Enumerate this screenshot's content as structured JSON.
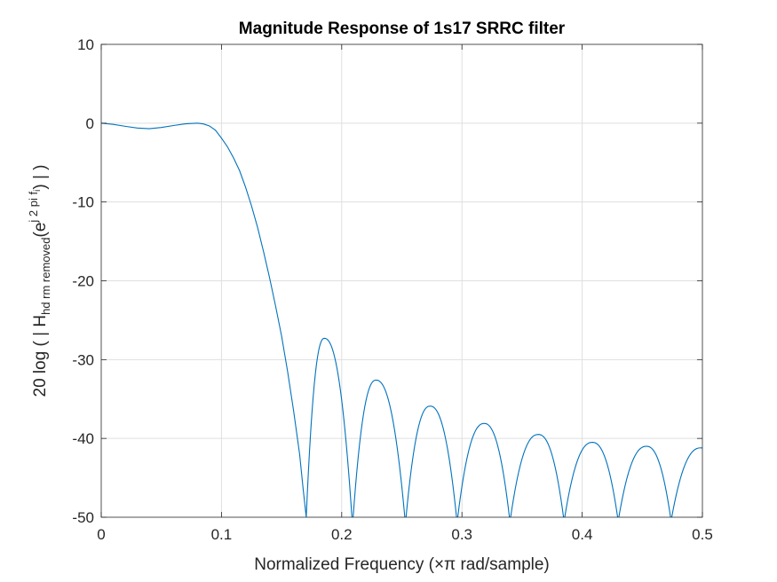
{
  "chart_data": {
    "type": "line",
    "title": "Magnitude Response of 1s17 SRRC filter",
    "xlabel": "Normalized Frequency (×π rad/sample)",
    "ylabel": {
      "prefix": "20  log ( | H",
      "sub": "hd rm removed",
      "mid": "(e",
      "sup": "j 2 pi f",
      "supsub": "i",
      "suffix": ") | )"
    },
    "xlim": [
      0,
      0.5
    ],
    "ylim": [
      -50,
      10
    ],
    "xticks": [
      0,
      0.1,
      0.2,
      0.3,
      0.4,
      0.5
    ],
    "xtick_labels": [
      "0",
      "0.1",
      "0.2",
      "0.3",
      "0.4",
      "0.5"
    ],
    "yticks": [
      10,
      0,
      -10,
      -20,
      -30,
      -40,
      -50
    ],
    "ytick_labels": [
      "10",
      "0",
      "-10",
      "-20",
      "-30",
      "-40",
      "-50"
    ],
    "grid": true,
    "line_color": "#0072BD",
    "passband": {
      "x": [
        0,
        0.01,
        0.02,
        0.03,
        0.04,
        0.05,
        0.06,
        0.07,
        0.08,
        0.085,
        0.09,
        0.095,
        0.1,
        0.105,
        0.11,
        0.115,
        0.12,
        0.125,
        0.13,
        0.135,
        0.14,
        0.145,
        0.15,
        0.155,
        0.16,
        0.165,
        0.168,
        0.1705
      ],
      "y": [
        0,
        -0.15,
        -0.4,
        -0.62,
        -0.7,
        -0.55,
        -0.3,
        -0.08,
        0,
        -0.1,
        -0.35,
        -0.9,
        -1.9,
        -3.0,
        -4.4,
        -6.0,
        -8.1,
        -10.5,
        -13.2,
        -16.3,
        -19.6,
        -23.2,
        -27.0,
        -31.5,
        -36.5,
        -42.0,
        -46.5,
        -50
      ]
    },
    "sidelobes": [
      {
        "null_left": 0.1705,
        "peak_x": 0.1855,
        "peak_y": -27.3,
        "null_right": 0.2085
      },
      {
        "null_left": 0.2095,
        "peak_x": 0.2285,
        "peak_y": -32.6,
        "null_right": 0.2525
      },
      {
        "null_left": 0.2535,
        "peak_x": 0.2735,
        "peak_y": -35.9,
        "null_right": 0.2955
      },
      {
        "null_left": 0.2965,
        "peak_x": 0.3185,
        "peak_y": -38.1,
        "null_right": 0.3395
      },
      {
        "null_left": 0.3405,
        "peak_x": 0.3635,
        "peak_y": -39.5,
        "null_right": 0.3845
      },
      {
        "null_left": 0.3855,
        "peak_x": 0.4085,
        "peak_y": -40.5,
        "null_right": 0.4295
      },
      {
        "null_left": 0.4305,
        "peak_x": 0.4535,
        "peak_y": -41.0,
        "null_right": 0.4735
      },
      {
        "null_left": 0.4745,
        "peak_x": 0.4985,
        "peak_y": -41.2,
        "null_right": 0.523
      }
    ]
  }
}
